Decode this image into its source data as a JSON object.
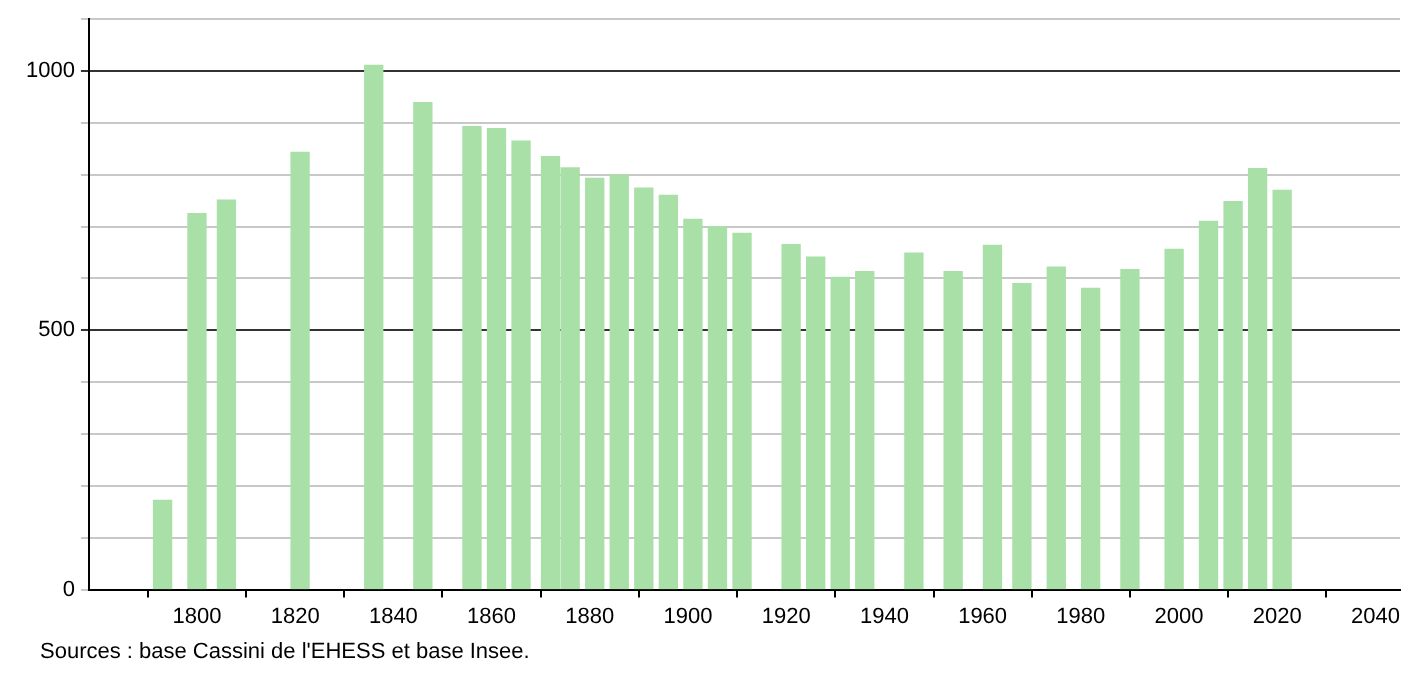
{
  "chart_data": {
    "type": "bar",
    "x": [
      1793,
      1800,
      1806,
      1821,
      1836,
      1846,
      1856,
      1861,
      1866,
      1872,
      1876,
      1881,
      1886,
      1891,
      1896,
      1901,
      1906,
      1911,
      1921,
      1926,
      1931,
      1936,
      1946,
      1954,
      1962,
      1968,
      1975,
      1982,
      1990,
      1999,
      2006,
      2011,
      2016,
      2021
    ],
    "values": [
      172,
      725,
      751,
      843,
      1011,
      939,
      893,
      889,
      865,
      835,
      813,
      793,
      799,
      774,
      760,
      714,
      700,
      687,
      665,
      641,
      602,
      613,
      649,
      613,
      664,
      590,
      622,
      581,
      617,
      656,
      710,
      748,
      812,
      770
    ],
    "color": "#a8e0a8",
    "xlim": [
      1778,
      2045
    ],
    "xticks": [
      1800,
      1820,
      1840,
      1860,
      1880,
      1900,
      1920,
      1940,
      1960,
      1980,
      2000,
      2020,
      2040
    ],
    "ylim": [
      0,
      1100
    ],
    "yticks": [
      0,
      {
        "value": 100,
        "label": null
      },
      {
        "value": 200,
        "label": null
      },
      {
        "value": 300,
        "label": null
      },
      {
        "value": 400,
        "label": null
      },
      500,
      {
        "value": 600,
        "label": null
      },
      {
        "value": 700,
        "label": null
      },
      {
        "value": 800,
        "label": null
      },
      {
        "value": 900,
        "label": null
      },
      1000,
      {
        "value": 1100,
        "label": null
      }
    ],
    "grid": "y",
    "annotations": [
      "Sources : base Cassini de l'EHESS et base Insee."
    ]
  }
}
